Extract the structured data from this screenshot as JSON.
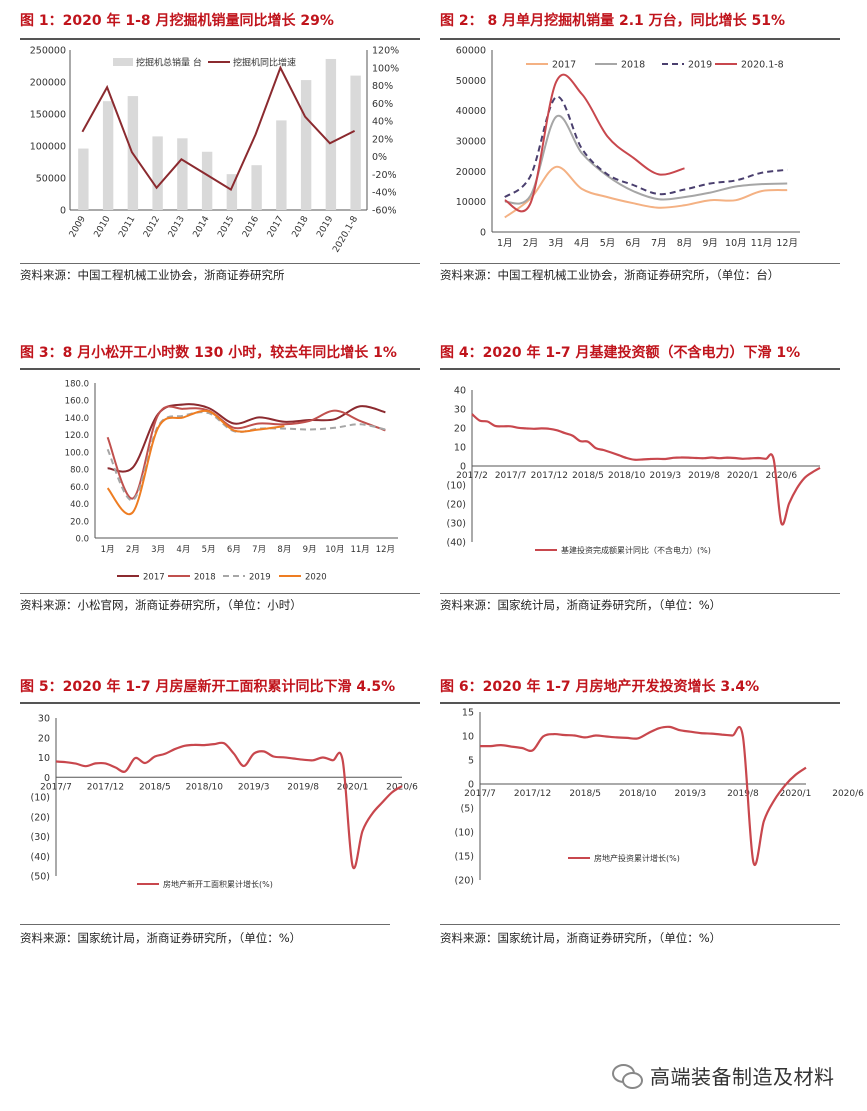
{
  "chart_data": [
    {
      "id": "fig1",
      "type": "bar+line",
      "title": "图 1：2020 年 1-8 月挖掘机销量同比增长 29%",
      "source": "资料来源：中国工程机械工业协会，浙商证券研究所",
      "categories": [
        "2009",
        "2010",
        "2011",
        "2012",
        "2013",
        "2014",
        "2015",
        "2016",
        "2017",
        "2018",
        "2019",
        "2020.1-8"
      ],
      "series": [
        {
          "name": "挖掘机总销量 台",
          "kind": "bar",
          "axis": "left",
          "color": "#d9d9d9",
          "values": [
            96000,
            170000,
            178000,
            115000,
            112000,
            91000,
            56000,
            70000,
            140000,
            203000,
            236000,
            210000
          ]
        },
        {
          "name": "挖掘机同比增速",
          "kind": "line",
          "axis": "right",
          "color": "#8b2a2f",
          "values": [
            28,
            78,
            5,
            -35,
            -3,
            -20,
            -37,
            25,
            100,
            45,
            15,
            29
          ]
        }
      ],
      "y_left": {
        "min": 0,
        "max": 250000,
        "ticks": [
          "0",
          "50000",
          "100000",
          "150000",
          "200000",
          "250000"
        ]
      },
      "y_right": {
        "min": -60,
        "max": 120,
        "ticks": [
          "-60%",
          "-40%",
          "-20%",
          "0%",
          "20%",
          "40%",
          "60%",
          "80%",
          "100%",
          "120%"
        ]
      }
    },
    {
      "id": "fig2",
      "type": "line",
      "title": "图 2： 8 月单月挖掘机销量 2.1 万台，同比增长 51%",
      "source": "资料来源：中国工程机械工业协会，浙商证券研究所，（单位：台）",
      "categories": [
        "1月",
        "2月",
        "3月",
        "4月",
        "5月",
        "6月",
        "7月",
        "8月",
        "9月",
        "10月",
        "11月",
        "12月"
      ],
      "series": [
        {
          "name": "2017",
          "color": "#f4b183",
          "dash": false,
          "values": [
            4800,
            11000,
            21500,
            14200,
            11500,
            9500,
            8000,
            8800,
            10500,
            10500,
            13500,
            13800
          ]
        },
        {
          "name": "2018",
          "color": "#a6a6a6",
          "dash": false,
          "values": [
            10000,
            12000,
            38000,
            26000,
            18500,
            13500,
            10800,
            11500,
            13000,
            15000,
            15800,
            16000
          ]
        },
        {
          "name": "2019",
          "color": "#4a3f6e",
          "dash": true,
          "values": [
            11500,
            18500,
            44500,
            27500,
            19000,
            15500,
            12500,
            14000,
            16000,
            17000,
            19500,
            20500
          ]
        },
        {
          "name": "2020.1-8",
          "color": "#c8474d",
          "dash": false,
          "values": [
            10500,
            9500,
            49500,
            45500,
            31500,
            24500,
            19000,
            21000,
            null,
            null,
            null,
            null
          ]
        }
      ],
      "y": {
        "min": 0,
        "max": 60000,
        "ticks": [
          "0",
          "10000",
          "20000",
          "30000",
          "40000",
          "50000",
          "60000"
        ]
      }
    },
    {
      "id": "fig3",
      "type": "line",
      "title": "图 3：8 月小松开工小时数 130 小时，较去年同比增长 1%",
      "source": "资料来源：小松官网，浙商证券研究所，（单位：小时）",
      "categories": [
        "1月",
        "2月",
        "3月",
        "4月",
        "5月",
        "6月",
        "7月",
        "8月",
        "9月",
        "10月",
        "11月",
        "12月"
      ],
      "series": [
        {
          "name": "2017",
          "color": "#8b2a2f",
          "dash": false,
          "values": [
            81,
            82,
            144,
            155,
            151,
            133,
            140,
            135,
            137,
            138,
            153,
            146
          ]
        },
        {
          "name": "2018",
          "color": "#c0504d",
          "dash": false,
          "values": [
            117,
            46,
            143,
            150,
            148,
            128,
            133,
            132,
            136,
            148,
            136,
            125
          ]
        },
        {
          "name": "2019",
          "color": "#a6a6a6",
          "dash": true,
          "values": [
            103,
            44,
            130,
            142,
            145,
            124,
            127,
            127,
            126,
            128,
            132,
            126
          ]
        },
        {
          "name": "2020",
          "color": "#ee7d22",
          "dash": false,
          "values": [
            58,
            30,
            128,
            140,
            147,
            125,
            126,
            130,
            null,
            null,
            null,
            null
          ]
        }
      ],
      "y": {
        "min": 0,
        "max": 180,
        "ticks": [
          "0.0",
          "20.0",
          "40.0",
          "60.0",
          "80.0",
          "100.0",
          "120.0",
          "140.0",
          "160.0",
          "180.0"
        ]
      }
    },
    {
      "id": "fig4",
      "type": "line",
      "title": "图 4：2020 年 1-7 月基建投资额（不含电力）下滑 1%",
      "source": "资料来源：国家统计局，浙商证券研究所，（单位：%）",
      "tick_labels": [
        "2017/2",
        "2017/7",
        "2017/12",
        "2018/5",
        "2018/10",
        "2019/3",
        "2019/8",
        "2020/1",
        "2020/6"
      ],
      "legend": "基建投资完成额累计同比（不含电力）(%)",
      "color": "#c8474d",
      "values": [
        27.3,
        23.9,
        23.4,
        21.1,
        20.9,
        20.9,
        20.1,
        19.8,
        19.6,
        19.8,
        19.6,
        18.8,
        17.3,
        16.0,
        13.1,
        12.8,
        9.4,
        8.4,
        7.1,
        5.7,
        4.2,
        3.3,
        3.4,
        3.7,
        3.8,
        3.7,
        4.3,
        4.5,
        4.4,
        4.2,
        4.1,
        4.5,
        4.1,
        4.4,
        4.2,
        3.8,
        4.0,
        4.2,
        3.8,
        3.7,
        -30.0,
        -19.7,
        -11.8,
        -6.3,
        -3.3,
        -1.0
      ],
      "y": {
        "min": -40,
        "max": 40,
        "ticks": [
          "(40)",
          "(30)",
          "(20)",
          "(10)",
          "0",
          "10",
          "20",
          "30",
          "40"
        ]
      }
    },
    {
      "id": "fig5",
      "type": "line",
      "title": "图 5：2020 年 1-7 月房屋新开工面积累计同比下滑 4.5%",
      "source": "资料来源：国家统计局，浙商证券研究所，（单位：%）",
      "tick_labels": [
        "2017/7",
        "2017/12",
        "2018/5",
        "2018/10",
        "2019/3",
        "2019/8",
        "2020/1",
        "2020/6"
      ],
      "legend": "房地产新开工面积累计增长(%)",
      "color": "#c8474d",
      "values": [
        8.0,
        7.6,
        6.9,
        5.6,
        7.0,
        7.0,
        5.0,
        2.9,
        9.7,
        7.2,
        10.5,
        11.8,
        14.2,
        15.9,
        16.4,
        16.3,
        16.8,
        17.2,
        11.9,
        5.7,
        11.9,
        13.1,
        10.5,
        10.1,
        9.5,
        8.9,
        8.6,
        10.0,
        8.6,
        8.5,
        -44.9,
        -27.2,
        -18.4,
        -12.8,
        -7.6,
        -4.5
      ],
      "y": {
        "min": -50,
        "max": 30,
        "ticks": [
          "(50)",
          "(40)",
          "(30)",
          "(20)",
          "(10)",
          "0",
          "10",
          "20",
          "30"
        ]
      }
    },
    {
      "id": "fig6",
      "type": "line",
      "title": "图 6：2020 年 1-7 月房地产开发投资增长 3.4%",
      "source": "资料来源：国家统计局，浙商证券研究所，（单位：%）",
      "tick_labels": [
        "2017/7",
        "2017/12",
        "2018/5",
        "2018/10",
        "2019/3",
        "2019/8",
        "2020/1",
        "2020/6"
      ],
      "legend": "房地产投资累计增长(%)",
      "color": "#c8474d",
      "values": [
        7.9,
        7.9,
        8.1,
        7.8,
        7.5,
        7.0,
        9.9,
        10.4,
        10.2,
        10.1,
        9.7,
        10.1,
        9.9,
        9.7,
        9.6,
        9.5,
        10.6,
        11.6,
        11.9,
        11.2,
        10.9,
        10.6,
        10.5,
        10.3,
        10.1,
        9.9,
        -16.3,
        -7.7,
        -3.3,
        -0.3,
        1.9,
        3.4
      ],
      "y": {
        "min": -20,
        "max": 15,
        "ticks": [
          "(20)",
          "(15)",
          "(10)",
          "(5)",
          "0",
          "5",
          "10",
          "15"
        ]
      }
    }
  ],
  "watermark": {
    "text": "高端装备制造及材料",
    "icon": "wechat-icon"
  }
}
